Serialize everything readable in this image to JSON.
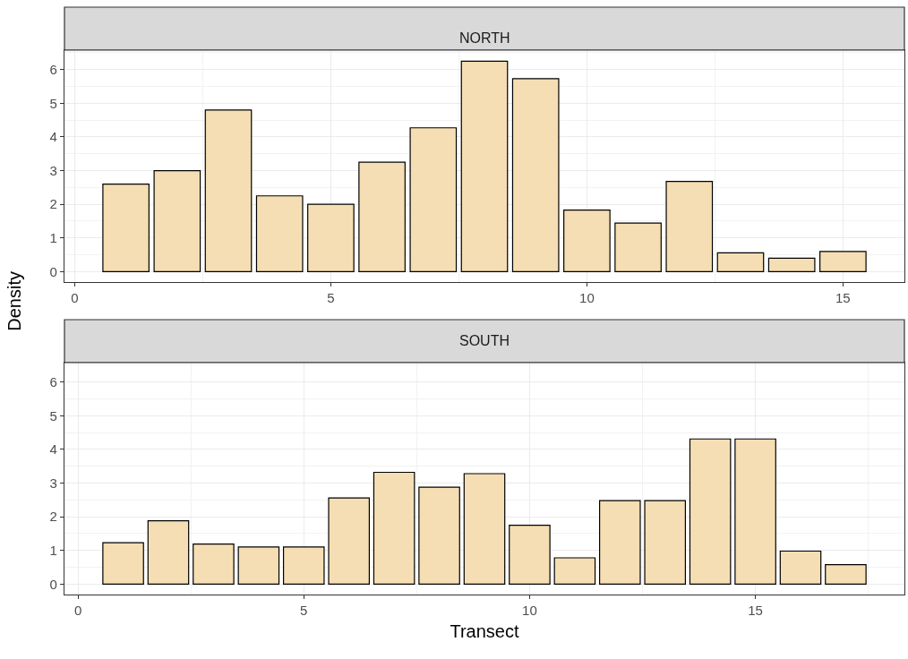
{
  "chart_data": [
    {
      "type": "bar",
      "title": "NORTH",
      "ylabel": "Density",
      "color": "#f5deb3",
      "grid": true,
      "x": [
        1,
        2,
        3,
        4,
        5,
        6,
        7,
        8,
        9,
        10,
        11,
        12,
        13,
        14,
        15
      ],
      "values": [
        2.6,
        3.0,
        4.8,
        2.25,
        2.0,
        3.25,
        4.27,
        6.25,
        5.73,
        1.83,
        1.44,
        2.68,
        0.56,
        0.4,
        0.6
      ],
      "xlim": [
        -0.2,
        16.2
      ],
      "xticks": [
        0,
        5,
        10,
        15
      ],
      "ylim": [
        -0.31,
        6.58
      ],
      "yticks": [
        0,
        1,
        2,
        3,
        4,
        5,
        6
      ]
    },
    {
      "type": "bar",
      "title": "SOUTH",
      "xlabel": "Transect",
      "color": "#f5deb3",
      "grid": true,
      "x": [
        1,
        2,
        3,
        4,
        5,
        6,
        7,
        8,
        9,
        10,
        11,
        12,
        13,
        14,
        15,
        16,
        17
      ],
      "values": [
        1.23,
        1.88,
        1.19,
        1.1,
        1.1,
        2.56,
        3.32,
        2.88,
        3.28,
        1.75,
        0.78,
        2.48,
        2.48,
        4.31,
        4.31,
        0.98,
        0.58
      ],
      "xlim": [
        -0.3,
        18.3
      ],
      "xticks": [
        0,
        5,
        10,
        15
      ],
      "ylim": [
        -0.31,
        6.58
      ],
      "yticks": [
        0,
        1,
        2,
        3,
        4,
        5,
        6
      ]
    }
  ]
}
